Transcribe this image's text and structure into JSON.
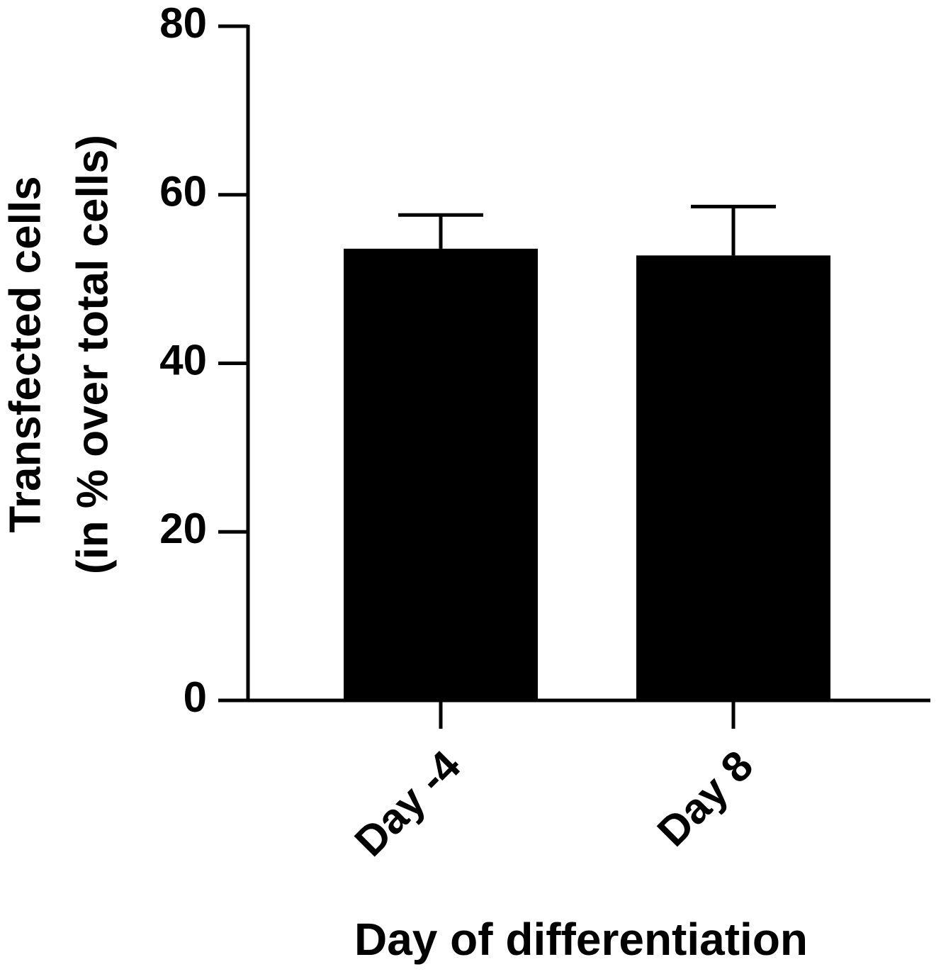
{
  "chart_data": {
    "type": "bar",
    "y_label": [
      "Transfected cells",
      "(in % over total cells)"
    ],
    "x_label": "Day of differentiation",
    "categories": [
      "Day -4",
      "Day 8"
    ],
    "values": [
      53.6,
      52.8
    ],
    "errors": [
      4.0,
      5.8
    ],
    "color": "#000000",
    "ylim": [
      0,
      80
    ],
    "yticks": [
      0,
      20,
      40,
      60,
      80
    ]
  }
}
